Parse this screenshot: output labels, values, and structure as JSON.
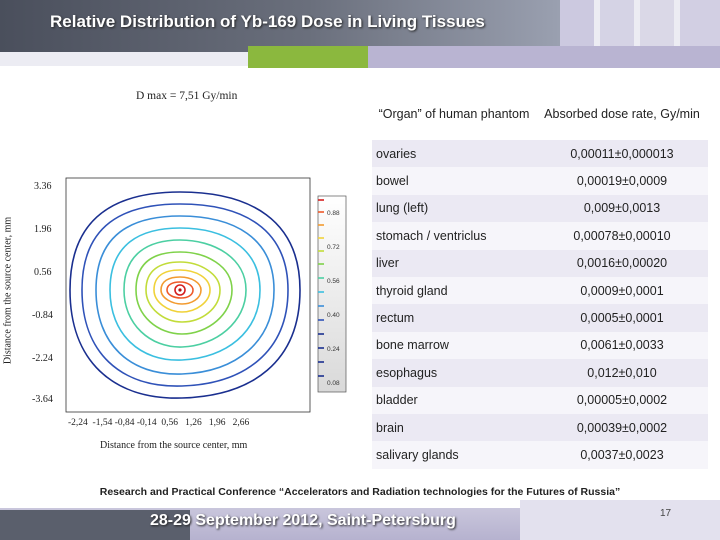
{
  "title": "Relative Distribution of Yb-169 Dose in Living Tissues",
  "figure": {
    "dmax": "D max = 7,51 Gy/min",
    "ylabel": "Distance from the source center, mm",
    "xlabel": "Distance from the source center, mm",
    "y_ticks": [
      "3.36",
      "1.96",
      "0.56",
      "-0.84",
      "-2.24",
      "-3.64"
    ],
    "x_ticks": [
      "-2,24",
      "-1,54",
      "-0,84",
      "-0,14",
      "0,56",
      "1,26",
      "1,96",
      "2,66"
    ],
    "x_tick_line": "-2,24  -1,54 -0,84 -0,14  0,56   1,26   1,96   2,66",
    "colorbar_ticks": [
      "0.88",
      "0.72",
      "0.56",
      "0.40",
      "0.24",
      "0.08"
    ]
  },
  "table": {
    "header_organ": "“Organ” of human phantom",
    "header_dose": "Absorbed dose rate, Gy/min",
    "rows": [
      {
        "organ": "ovaries",
        "value": "0,00011±0,000013"
      },
      {
        "organ": "bowel",
        "value": "0,00019±0,0009"
      },
      {
        "organ": "lung (left)",
        "value": "0,009±0,0013"
      },
      {
        "organ": "stomach / ventriclus",
        "value": "0,00078±0,00010"
      },
      {
        "organ": "liver",
        "value": "0,0016±0,00020"
      },
      {
        "organ": "thyroid gland",
        "value": "0,0009±0,0001"
      },
      {
        "organ": "rectum",
        "value": "0,0005±0,0001"
      },
      {
        "organ": "bone marrow",
        "value": "0,0061±0,0033"
      },
      {
        "organ": "esophagus",
        "value": "0,012±0,010"
      },
      {
        "organ": "bladder",
        "value": "0,00005±0,0002"
      },
      {
        "organ": "brain",
        "value": "0,00039±0,0002"
      },
      {
        "organ": "salivary glands",
        "value": "0,0037±0,0023"
      }
    ]
  },
  "footer": {
    "conference": "Research and Practical Conference “Accelerators and Radiation technologies for the Futures of Russia”",
    "date_place": "28-29 September 2012, Saint-Petersburg",
    "page_number": "17"
  }
}
